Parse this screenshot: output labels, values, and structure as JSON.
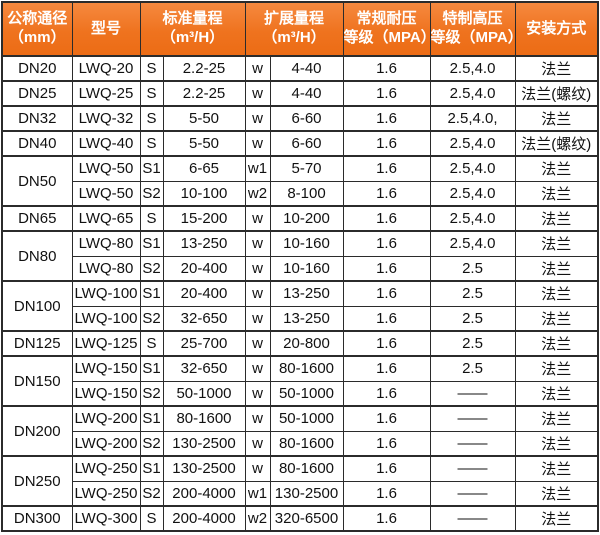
{
  "colors": {
    "header_bg": "#ef731f",
    "header_bg_top": "#f6893f",
    "header_text": "#ffffff",
    "border": "#2b2b2b",
    "body_text": "#111111",
    "body_bg": "#ffffff"
  },
  "table": {
    "headers": [
      {
        "name": "nominal-diameter",
        "span": 1,
        "lines": [
          "公称通径",
          "（mm）"
        ]
      },
      {
        "name": "model",
        "span": 1,
        "lines": [
          "型号"
        ]
      },
      {
        "name": "standard-range",
        "span": 2,
        "lines": [
          "标准量程",
          "（m³/H）"
        ]
      },
      {
        "name": "extended-range",
        "span": 2,
        "lines": [
          "扩展量程",
          "（m³/H）"
        ]
      },
      {
        "name": "normal-pressure",
        "span": 1,
        "lines": [
          "常规耐压",
          "等级（MPA）"
        ]
      },
      {
        "name": "high-pressure",
        "span": 1,
        "lines": [
          "特制高压",
          "等级（MPA）"
        ]
      },
      {
        "name": "installation",
        "span": 1,
        "lines": [
          "安装方式"
        ]
      }
    ],
    "groups": [
      {
        "dn": "DN20",
        "rows": [
          {
            "model": "LWQ-20",
            "std_code": "S",
            "std_range": "2.2-25",
            "ext_code": "w",
            "ext_range": "4-40",
            "pressure": "1.6",
            "high_pressure": "2.5,4.0",
            "install": "法兰"
          }
        ]
      },
      {
        "dn": "DN25",
        "rows": [
          {
            "model": "LWQ-25",
            "std_code": "S",
            "std_range": "2.2-25",
            "ext_code": "w",
            "ext_range": "4-40",
            "pressure": "1.6",
            "high_pressure": "2.5,4.0",
            "install": "法兰(螺纹)"
          }
        ]
      },
      {
        "dn": "DN32",
        "rows": [
          {
            "model": "LWQ-32",
            "std_code": "S",
            "std_range": "5-50",
            "ext_code": "w",
            "ext_range": "6-60",
            "pressure": "1.6",
            "high_pressure": "2.5,4.0,",
            "install": "法兰"
          }
        ]
      },
      {
        "dn": "DN40",
        "rows": [
          {
            "model": "LWQ-40",
            "std_code": "S",
            "std_range": "5-50",
            "ext_code": "w",
            "ext_range": "6-60",
            "pressure": "1.6",
            "high_pressure": "2.5,4.0",
            "install": "法兰(螺纹)"
          }
        ]
      },
      {
        "dn": "DN50",
        "rows": [
          {
            "model": "LWQ-50",
            "std_code": "S1",
            "std_range": "6-65",
            "ext_code": "w1",
            "ext_range": "5-70",
            "pressure": "1.6",
            "high_pressure": "2.5,4.0",
            "install": "法兰"
          },
          {
            "model": "LWQ-50",
            "std_code": "S2",
            "std_range": "10-100",
            "ext_code": "w2",
            "ext_range": "8-100",
            "pressure": "1.6",
            "high_pressure": "2.5,4.0",
            "install": "法兰"
          }
        ]
      },
      {
        "dn": "DN65",
        "rows": [
          {
            "model": "LWQ-65",
            "std_code": "S",
            "std_range": "15-200",
            "ext_code": "w",
            "ext_range": "10-200",
            "pressure": "1.6",
            "high_pressure": "2.5,4.0",
            "install": "法兰"
          }
        ]
      },
      {
        "dn": "DN80",
        "rows": [
          {
            "model": "LWQ-80",
            "std_code": "S1",
            "std_range": "13-250",
            "ext_code": "w",
            "ext_range": "10-160",
            "pressure": "1.6",
            "high_pressure": "2.5,4.0",
            "install": "法兰"
          },
          {
            "model": "LWQ-80",
            "std_code": "S2",
            "std_range": "20-400",
            "ext_code": "w",
            "ext_range": "10-160",
            "pressure": "1.6",
            "high_pressure": "2.5",
            "install": "法兰"
          }
        ]
      },
      {
        "dn": "DN100",
        "rows": [
          {
            "model": "LWQ-100",
            "std_code": "S1",
            "std_range": "20-400",
            "ext_code": "w",
            "ext_range": "13-250",
            "pressure": "1.6",
            "high_pressure": "2.5",
            "install": "法兰"
          },
          {
            "model": "LWQ-100",
            "std_code": "S2",
            "std_range": "32-650",
            "ext_code": "w",
            "ext_range": "13-250",
            "pressure": "1.6",
            "high_pressure": "2.5",
            "install": "法兰"
          }
        ]
      },
      {
        "dn": "DN125",
        "rows": [
          {
            "model": "LWQ-125",
            "std_code": "S",
            "std_range": "25-700",
            "ext_code": "w",
            "ext_range": "20-800",
            "pressure": "1.6",
            "high_pressure": "2.5",
            "install": "法兰"
          }
        ]
      },
      {
        "dn": "DN150",
        "rows": [
          {
            "model": "LWQ-150",
            "std_code": "S1",
            "std_range": "32-650",
            "ext_code": "w",
            "ext_range": "80-1600",
            "pressure": "1.6",
            "high_pressure": "2.5",
            "install": "法兰"
          },
          {
            "model": "LWQ-150",
            "std_code": "S2",
            "std_range": "50-1000",
            "ext_code": "w",
            "ext_range": "50-1000",
            "pressure": "1.6",
            "high_pressure": "——",
            "install": "法兰"
          }
        ]
      },
      {
        "dn": "DN200",
        "rows": [
          {
            "model": "LWQ-200",
            "std_code": "S1",
            "std_range": "80-1600",
            "ext_code": "w",
            "ext_range": "50-1000",
            "pressure": "1.6",
            "high_pressure": "——",
            "install": "法兰"
          },
          {
            "model": "LWQ-200",
            "std_code": "S2",
            "std_range": "130-2500",
            "ext_code": "w",
            "ext_range": "80-1600",
            "pressure": "1.6",
            "high_pressure": "——",
            "install": "法兰"
          }
        ]
      },
      {
        "dn": "DN250",
        "rows": [
          {
            "model": "LWQ-250",
            "std_code": "S1",
            "std_range": "130-2500",
            "ext_code": "w",
            "ext_range": "80-1600",
            "pressure": "1.6",
            "high_pressure": "——",
            "install": "法兰"
          },
          {
            "model": "LWQ-250",
            "std_code": "S2",
            "std_range": "200-4000",
            "ext_code": "w1",
            "ext_range": "130-2500",
            "pressure": "1.6",
            "high_pressure": "——",
            "install": "法兰"
          }
        ]
      },
      {
        "dn": "DN300",
        "rows": [
          {
            "model": "LWQ-300",
            "std_code": "S",
            "std_range": "200-4000",
            "ext_code": "w2",
            "ext_range": "320-6500",
            "pressure": "1.6",
            "high_pressure": "——",
            "install": "法兰"
          }
        ]
      }
    ]
  }
}
